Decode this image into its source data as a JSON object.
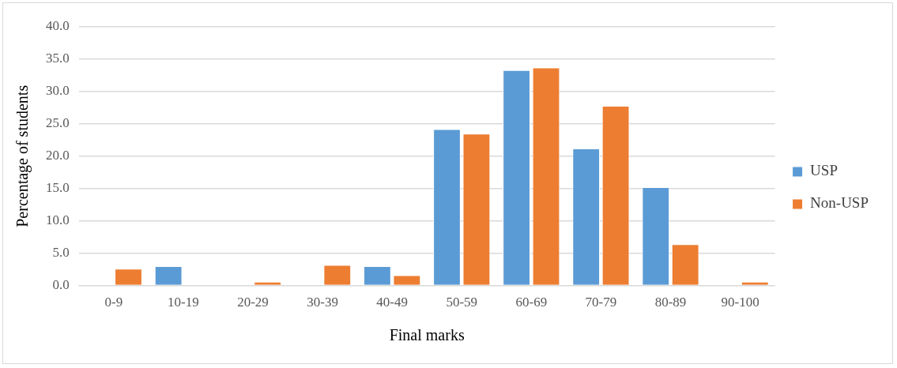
{
  "chart_data": {
    "type": "bar",
    "xlabel": "Final marks",
    "ylabel": "Percentage of students",
    "categories": [
      "0-9",
      "10-19",
      "20-29",
      "30-39",
      "40-49",
      "50-59",
      "60-69",
      "70-79",
      "80-89",
      "90-100"
    ],
    "series": [
      {
        "name": "USP",
        "color": "#5b9bd5",
        "values": [
          0,
          3.0,
          0,
          0,
          3.0,
          24.2,
          33.3,
          21.2,
          15.2,
          0
        ]
      },
      {
        "name": "Non-USP",
        "color": "#ed7d31",
        "values": [
          2.6,
          0,
          0.6,
          3.2,
          1.6,
          23.5,
          33.7,
          27.8,
          6.4,
          0.6
        ]
      }
    ],
    "ylim": [
      0,
      40
    ],
    "yticks": [
      {
        "value": 0,
        "label": "0.0"
      },
      {
        "value": 5,
        "label": "5.0"
      },
      {
        "value": 10,
        "label": "10.0"
      },
      {
        "value": 15,
        "label": "15.0"
      },
      {
        "value": 20,
        "label": "20.0"
      },
      {
        "value": 25,
        "label": "25.0"
      },
      {
        "value": 30,
        "label": "30.0"
      },
      {
        "value": 35,
        "label": "35.0"
      },
      {
        "value": 40,
        "label": "40.0"
      }
    ],
    "grid": "y",
    "legend": "right"
  }
}
